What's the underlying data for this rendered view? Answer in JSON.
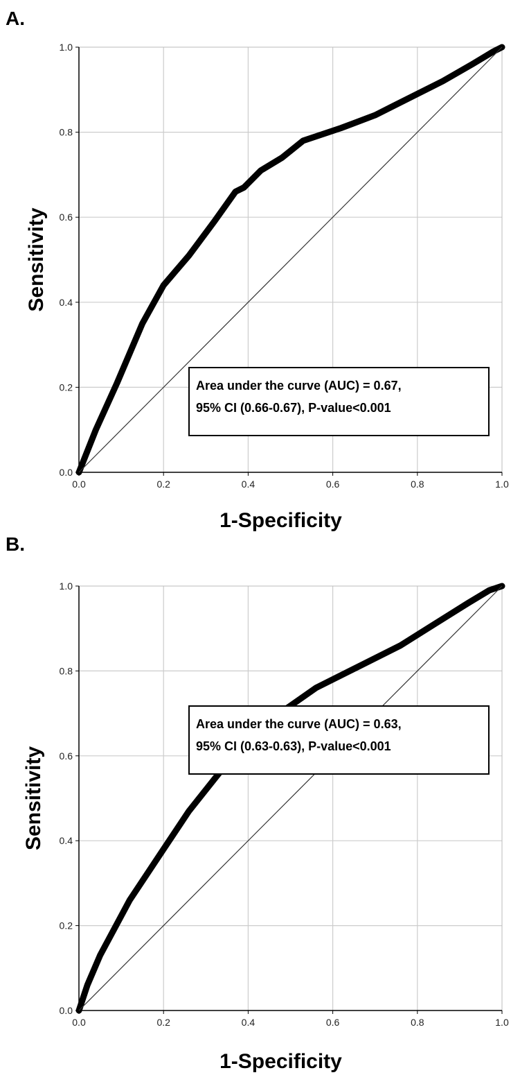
{
  "chart_data": [
    {
      "type": "line",
      "panel_label": "A.",
      "xlabel": "1-Specificity",
      "ylabel": "Sensitivity",
      "xlim": [
        0.0,
        1.0
      ],
      "ylim": [
        0.0,
        1.0
      ],
      "x_ticks": [
        "0.0",
        "0.2",
        "0.4",
        "0.6",
        "0.8",
        "1.0"
      ],
      "y_ticks": [
        "0.0",
        "0.2",
        "0.4",
        "0.6",
        "0.8",
        "1.0"
      ],
      "grid": true,
      "series": [
        {
          "role": "roc",
          "x": [
            0.0,
            0.04,
            0.09,
            0.15,
            0.2,
            0.26,
            0.32,
            0.37,
            0.39,
            0.43,
            0.48,
            0.53,
            0.62,
            0.7,
            0.74,
            0.86,
            0.93,
            0.98,
            1.0
          ],
          "y": [
            0.0,
            0.1,
            0.21,
            0.35,
            0.44,
            0.51,
            0.59,
            0.66,
            0.67,
            0.71,
            0.74,
            0.78,
            0.81,
            0.84,
            0.86,
            0.92,
            0.96,
            0.99,
            1.0
          ]
        },
        {
          "role": "reference",
          "x": [
            0.0,
            1.0
          ],
          "y": [
            0.0,
            1.0
          ]
        }
      ],
      "annotation": [
        "Area under the curve (AUC) = 0.67,",
        "95% CI (0.66-0.67), P-value<0.001"
      ]
    },
    {
      "type": "line",
      "panel_label": "B.",
      "xlabel": "1-Specificity",
      "ylabel": "Sensitivity",
      "xlim": [
        0.0,
        1.0
      ],
      "ylim": [
        0.0,
        1.0
      ],
      "x_ticks": [
        "0.0",
        "0.2",
        "0.4",
        "0.6",
        "0.8",
        "1.0"
      ],
      "y_ticks": [
        "0.0",
        "0.2",
        "0.4",
        "0.6",
        "0.8",
        "1.0"
      ],
      "grid": true,
      "series": [
        {
          "role": "roc",
          "x": [
            0.0,
            0.02,
            0.05,
            0.12,
            0.2,
            0.26,
            0.34,
            0.4,
            0.46,
            0.56,
            0.66,
            0.76,
            0.84,
            0.92,
            0.97,
            1.0
          ],
          "y": [
            0.0,
            0.06,
            0.13,
            0.26,
            0.38,
            0.47,
            0.57,
            0.63,
            0.69,
            0.76,
            0.81,
            0.86,
            0.91,
            0.96,
            0.99,
            1.0
          ]
        },
        {
          "role": "reference",
          "x": [
            0.0,
            1.0
          ],
          "y": [
            0.0,
            1.0
          ]
        }
      ],
      "annotation": [
        "Area under the curve (AUC) = 0.63,",
        "95% CI (0.63-0.63), P-value<0.001"
      ]
    }
  ],
  "style": {
    "grid_color": "#cccccc",
    "curve_color": "#000000",
    "axis_color": "#000000"
  }
}
